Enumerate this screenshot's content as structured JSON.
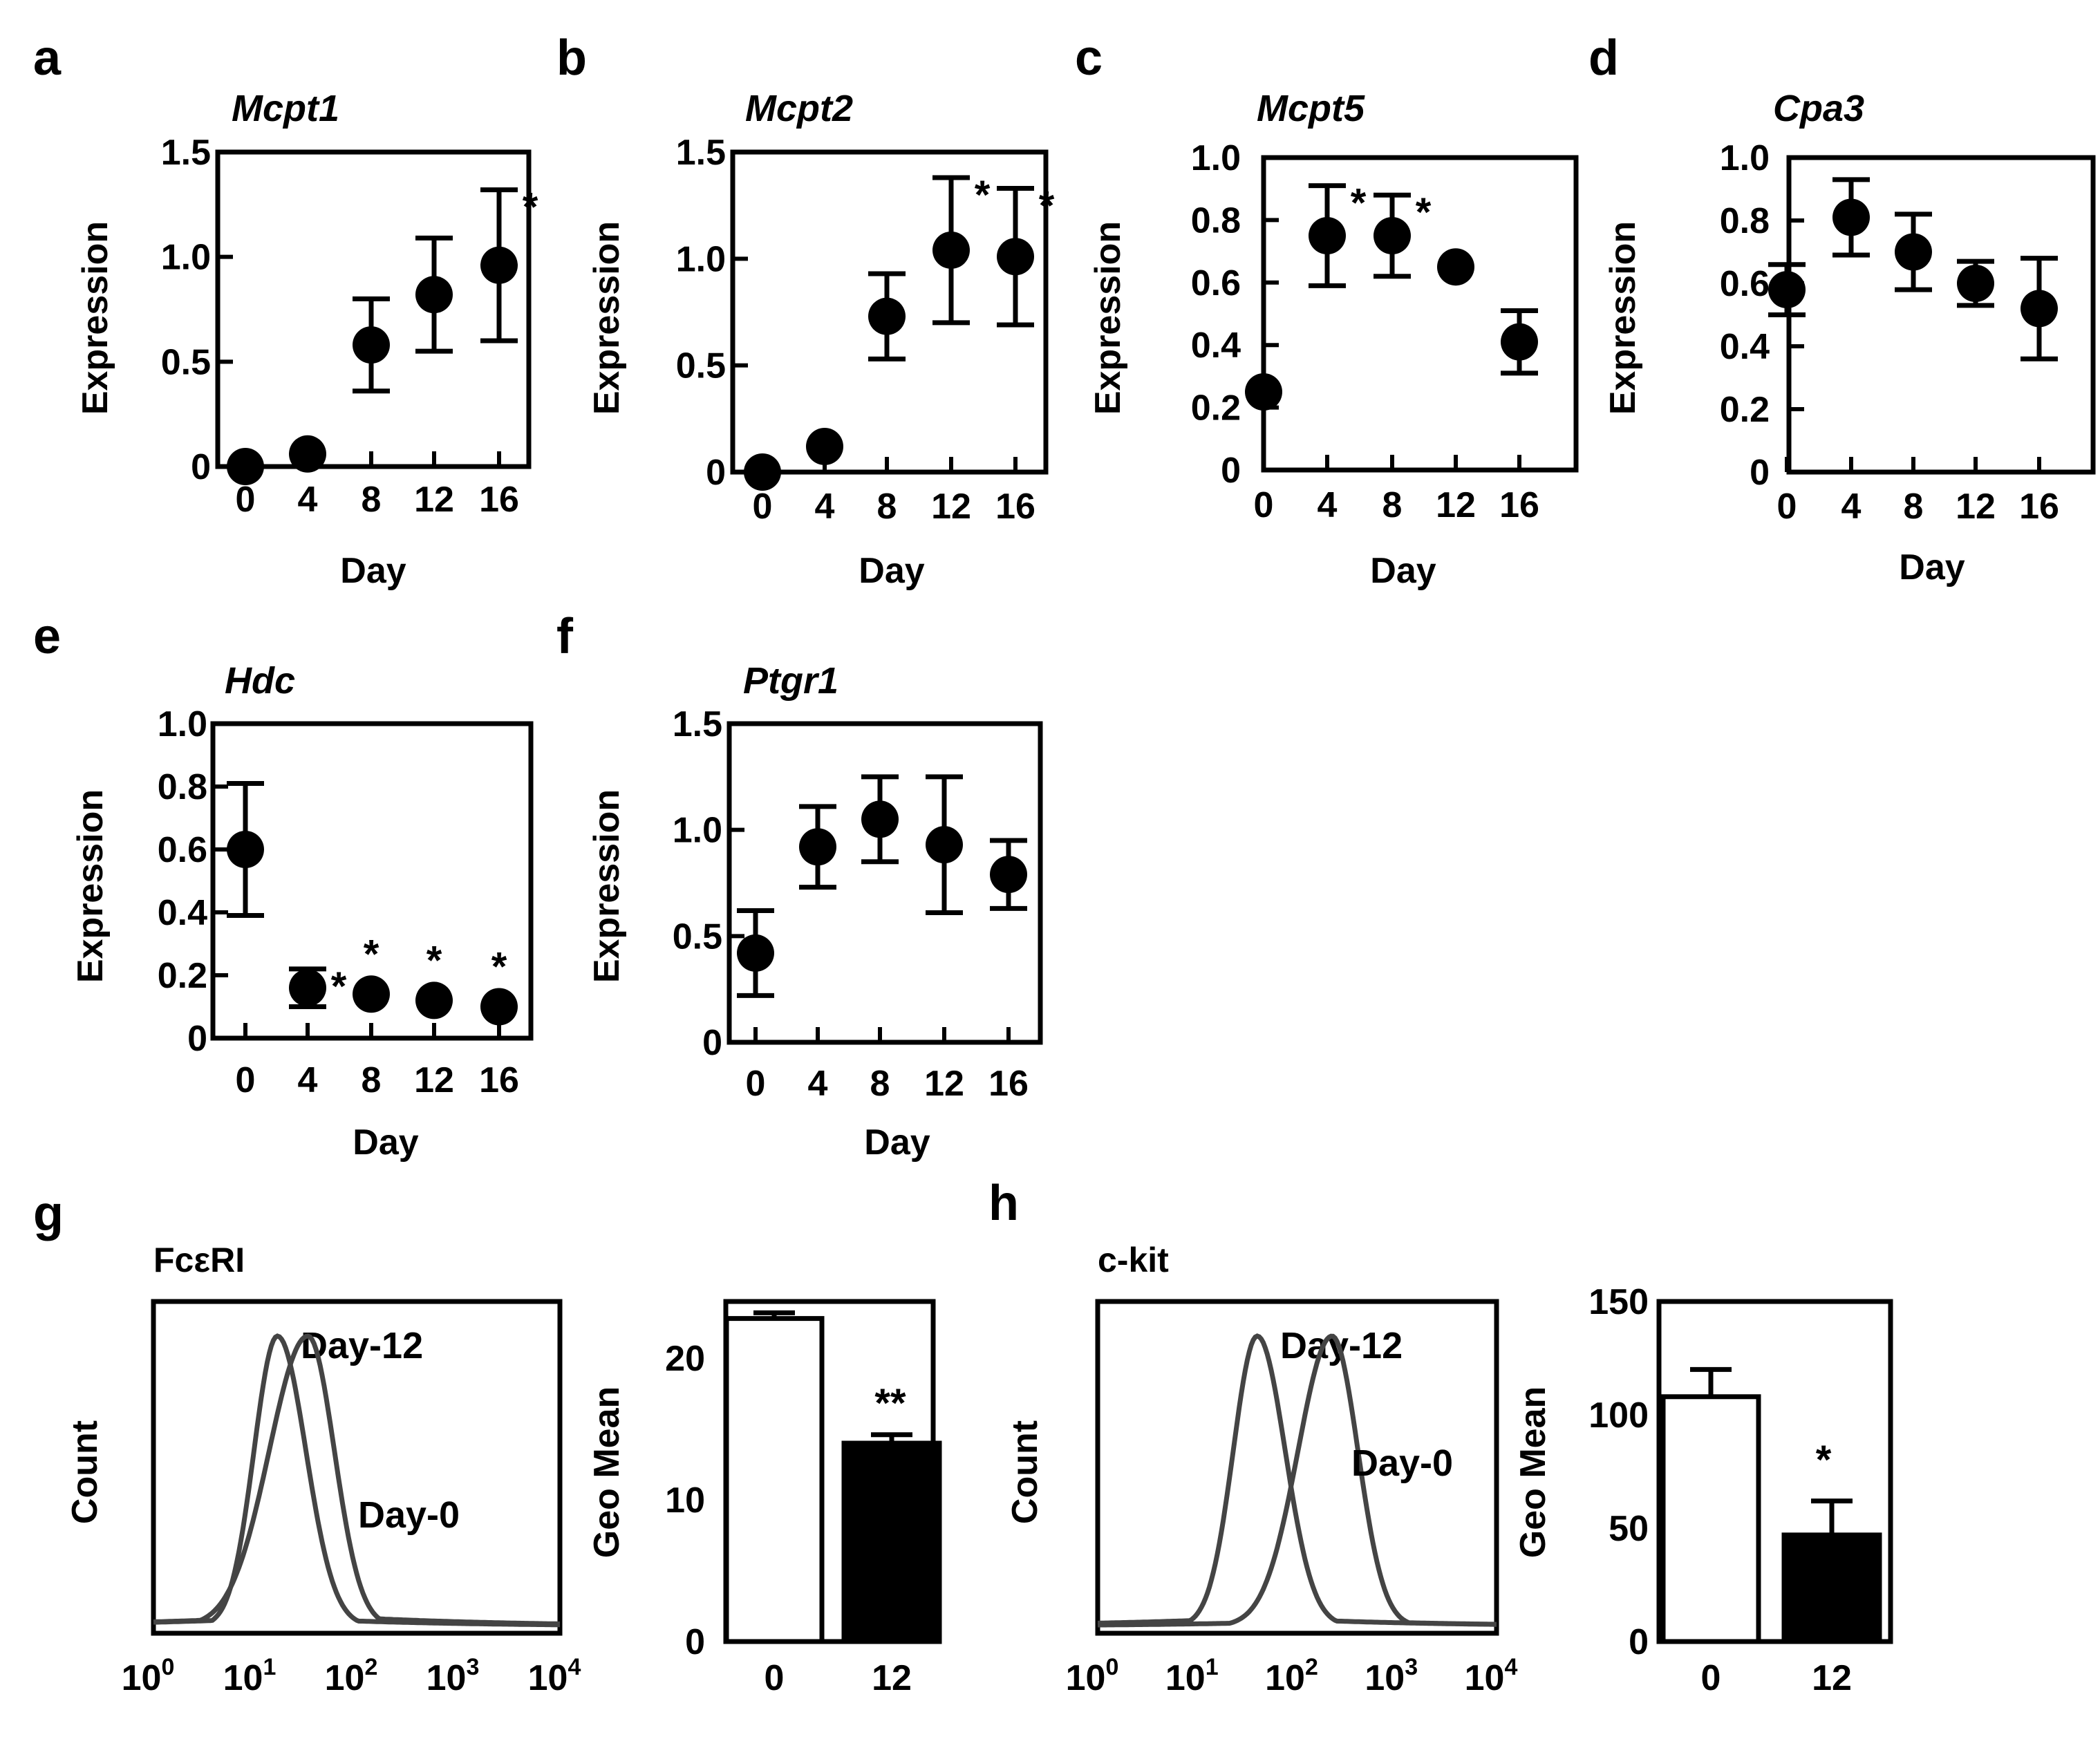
{
  "chart_data": [
    {
      "panel": "a",
      "type": "scatter",
      "title": "Mcpt1",
      "xlabel": "Day",
      "ylabel": "Expression",
      "x": [
        0,
        4,
        8,
        12,
        16
      ],
      "values": [
        0.0,
        0.06,
        0.58,
        0.82,
        0.96
      ],
      "errors": [
        0.0,
        0.0,
        0.22,
        0.27,
        0.36
      ],
      "significant": [
        false,
        false,
        false,
        false,
        true
      ],
      "ylim": [
        0,
        1.5
      ],
      "yticks": [
        0,
        0.5,
        1.0,
        1.5
      ],
      "ytick_labels": [
        "0",
        "0.5",
        "1.0",
        "1.5"
      ],
      "xtick_labels": [
        "0",
        "4",
        "8",
        "12",
        "16"
      ],
      "star_label": "*"
    },
    {
      "panel": "b",
      "type": "scatter",
      "title": "Mcpt2",
      "xlabel": "Day",
      "ylabel": "Expression",
      "x": [
        0,
        4,
        8,
        12,
        16
      ],
      "values": [
        0.0,
        0.12,
        0.73,
        1.04,
        1.01
      ],
      "errors": [
        0.0,
        0.0,
        0.2,
        0.34,
        0.32
      ],
      "significant": [
        false,
        false,
        false,
        true,
        true
      ],
      "ylim": [
        0,
        1.5
      ],
      "yticks": [
        0,
        0.5,
        1.0,
        1.5
      ],
      "ytick_labels": [
        "0",
        "0.5",
        "1.0",
        "1.5"
      ],
      "xtick_labels": [
        "0",
        "4",
        "8",
        "12",
        "16"
      ],
      "star_label": "*"
    },
    {
      "panel": "c",
      "type": "scatter",
      "title": "Mcpt5",
      "xlabel": "Day",
      "ylabel": "Expression",
      "x": [
        0,
        4,
        8,
        12,
        16
      ],
      "values": [
        0.25,
        0.75,
        0.75,
        0.65,
        0.41
      ],
      "errors": [
        0.0,
        0.16,
        0.13,
        0.0,
        0.1
      ],
      "significant": [
        false,
        true,
        true,
        false,
        false
      ],
      "ylim": [
        0,
        1.0
      ],
      "yticks": [
        0,
        0.2,
        0.4,
        0.6,
        0.8,
        1.0
      ],
      "ytick_labels": [
        "0",
        "0.2",
        "0.4",
        "0.6",
        "0.8",
        "1.0"
      ],
      "xtick_labels": [
        "0",
        "4",
        "8",
        "12",
        "16"
      ],
      "star_label": "*"
    },
    {
      "panel": "d",
      "type": "scatter",
      "title": "Cpa3",
      "xlabel": "Day",
      "ylabel": "Expression",
      "x": [
        0,
        4,
        8,
        12,
        16
      ],
      "values": [
        0.58,
        0.81,
        0.7,
        0.6,
        0.52
      ],
      "errors": [
        0.08,
        0.12,
        0.12,
        0.07,
        0.16
      ],
      "significant": [
        false,
        false,
        false,
        false,
        false
      ],
      "ylim": [
        0,
        1.0
      ],
      "yticks": [
        0,
        0.2,
        0.4,
        0.6,
        0.8,
        1.0
      ],
      "ytick_labels": [
        "0",
        "0.2",
        "0.4",
        "0.6",
        "0.8",
        "1.0"
      ],
      "xtick_labels": [
        "0",
        "4",
        "8",
        "12",
        "16"
      ],
      "star_label": "*"
    },
    {
      "panel": "e",
      "type": "scatter",
      "title": "Hdc",
      "xlabel": "Day",
      "ylabel": "Expression",
      "x": [
        0,
        4,
        8,
        12,
        16
      ],
      "values": [
        0.6,
        0.16,
        0.14,
        0.12,
        0.1
      ],
      "errors": [
        0.21,
        0.06,
        0.0,
        0.0,
        0.0
      ],
      "significant": [
        false,
        true,
        true,
        true,
        true
      ],
      "ylim": [
        0,
        1.0
      ],
      "yticks": [
        0,
        0.2,
        0.4,
        0.6,
        0.8,
        1.0
      ],
      "ytick_labels": [
        "0",
        "0.2",
        "0.4",
        "0.6",
        "0.8",
        "1.0"
      ],
      "xtick_labels": [
        "0",
        "4",
        "8",
        "12",
        "16"
      ],
      "star_label": "*"
    },
    {
      "panel": "f",
      "type": "scatter",
      "title": "Ptgr1",
      "xlabel": "Day",
      "ylabel": "Expression",
      "x": [
        0,
        4,
        8,
        12,
        16
      ],
      "values": [
        0.42,
        0.92,
        1.05,
        0.93,
        0.79
      ],
      "errors": [
        0.2,
        0.19,
        0.2,
        0.32,
        0.16
      ],
      "significant": [
        false,
        false,
        false,
        false,
        false
      ],
      "ylim": [
        0,
        1.5
      ],
      "yticks": [
        0,
        0.5,
        1.0,
        1.5
      ],
      "ytick_labels": [
        "0",
        "0.5",
        "1.0",
        "1.5"
      ],
      "xtick_labels": [
        "0",
        "4",
        "8",
        "12",
        "16"
      ],
      "star_label": "*"
    },
    {
      "panel": "g",
      "type": "line",
      "title": "FcεRI",
      "ylabel": "Count",
      "xscale": "log",
      "xlim": [
        1,
        10000
      ],
      "xtick_labels": [
        "10",
        "10",
        "10",
        "10",
        "10"
      ],
      "xtick_exponents": [
        "0",
        "1",
        "2",
        "3",
        "4"
      ],
      "series": [
        {
          "name": "Day-12",
          "peak_log10": 1.22,
          "width_left": 0.23,
          "width_right": 0.28,
          "tail_height": 0.03
        },
        {
          "name": "Day-0",
          "peak_log10": 1.52,
          "width_left": 0.38,
          "width_right": 0.26,
          "tail_height": 0.04
        }
      ]
    },
    {
      "panel": "g",
      "type": "bar",
      "ylabel": "Geo Mean",
      "categories": [
        "0",
        "12"
      ],
      "values": [
        22.8,
        14.0
      ],
      "errors": [
        0.4,
        0.6
      ],
      "fills": [
        "#ffffff",
        "#000000"
      ],
      "ylim": [
        0,
        24
      ],
      "yticks": [
        0,
        10,
        20
      ],
      "ytick_labels": [
        "0",
        "10",
        "20"
      ],
      "annotation": "**"
    },
    {
      "panel": "h",
      "type": "line",
      "title": "c-kit",
      "ylabel": "Count",
      "xscale": "log",
      "xlim": [
        1,
        10000
      ],
      "xtick_labels": [
        "10",
        "10",
        "10",
        "10",
        "10"
      ],
      "xtick_exponents": [
        "0",
        "1",
        "2",
        "3",
        "4"
      ],
      "series": [
        {
          "name": "Day-12",
          "peak_log10": 1.6,
          "width_left": 0.24,
          "width_right": 0.28,
          "tail_height": 0.03
        },
        {
          "name": "Day-0",
          "peak_log10": 2.35,
          "width_left": 0.34,
          "width_right": 0.26,
          "tail_height": 0.02
        }
      ]
    },
    {
      "panel": "h",
      "type": "bar",
      "ylabel": "Geo Mean",
      "categories": [
        "0",
        "12"
      ],
      "values": [
        108,
        47
      ],
      "errors": [
        12,
        15
      ],
      "fills": [
        "#ffffff",
        "#000000"
      ],
      "ylim": [
        0,
        150
      ],
      "yticks": [
        0,
        50,
        100,
        150
      ],
      "ytick_labels": [
        "0",
        "50",
        "100",
        "150"
      ],
      "annotation": "*"
    }
  ]
}
